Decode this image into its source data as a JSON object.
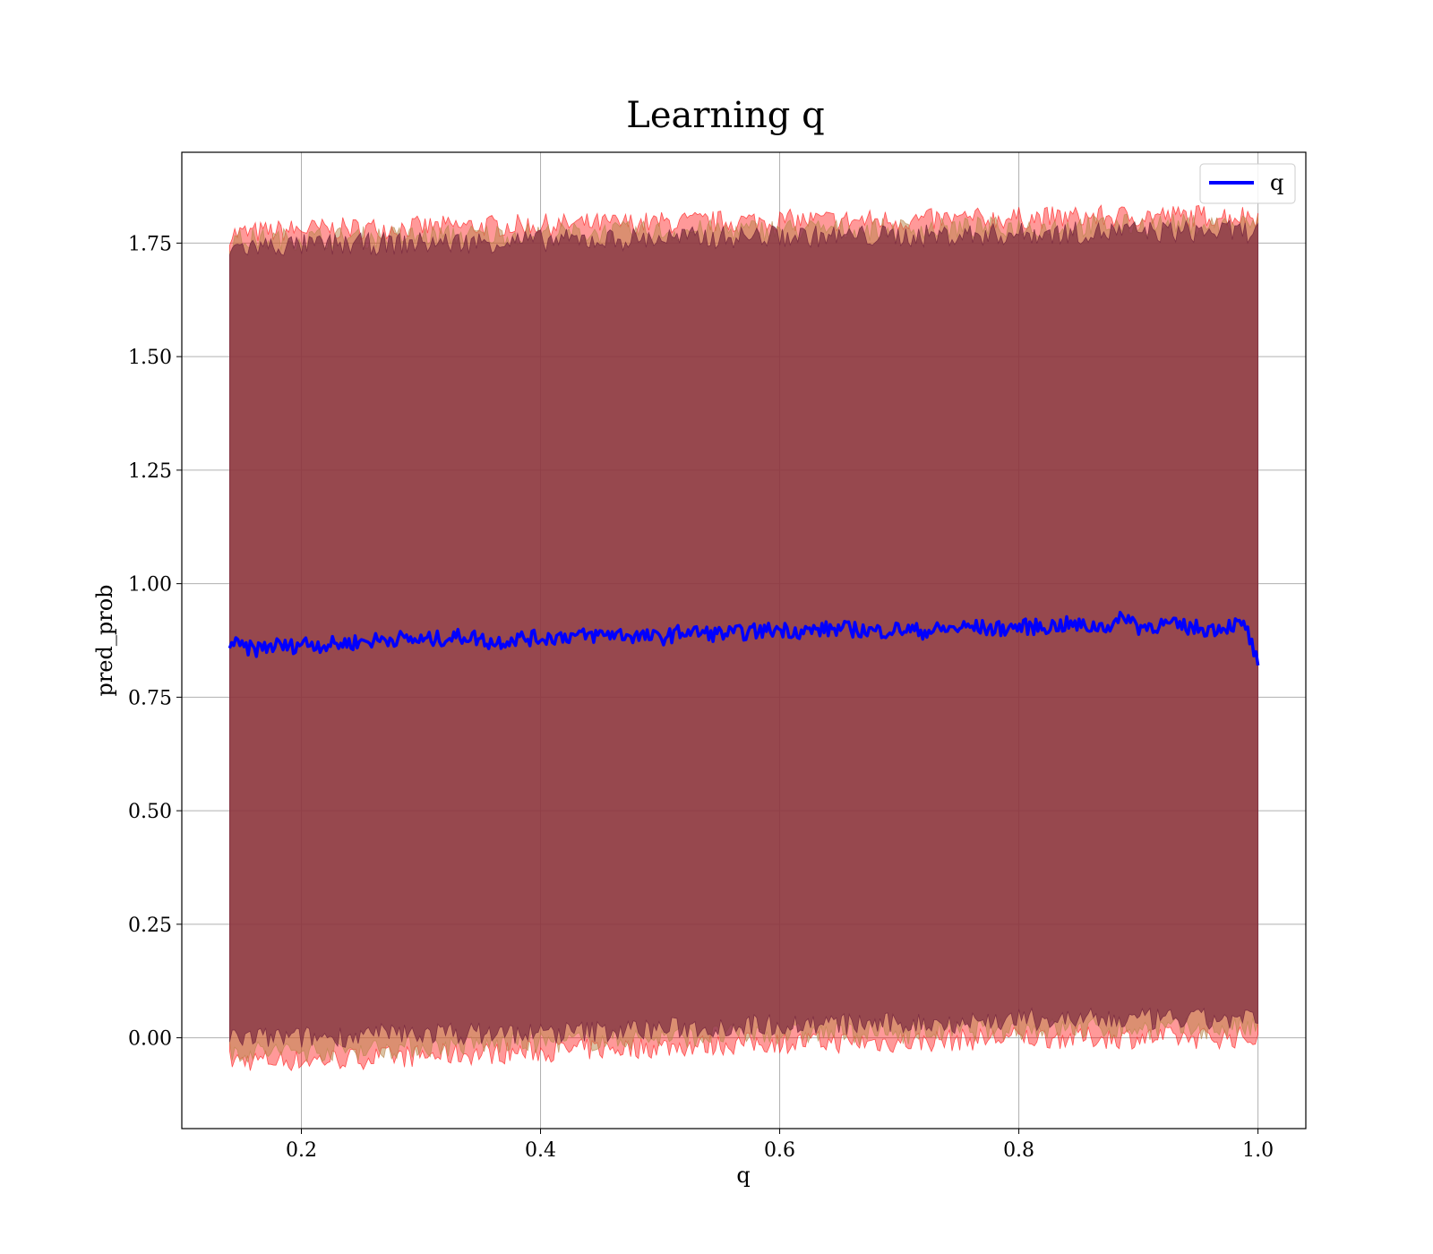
{
  "chart_data": {
    "type": "line",
    "title": "Learning q",
    "xlabel": "q",
    "ylabel": "pred_prob",
    "xlim": [
      0.1,
      1.04
    ],
    "ylim": [
      -0.2,
      1.95
    ],
    "xticks": [
      "0.2",
      "0.4",
      "0.6",
      "0.8",
      "1.0"
    ],
    "xtick_values": [
      0.2,
      0.4,
      0.6,
      0.8,
      1.0
    ],
    "yticks": [
      "0.00",
      "0.25",
      "0.50",
      "0.75",
      "1.00",
      "1.25",
      "1.50",
      "1.75"
    ],
    "ytick_values": [
      0.0,
      0.25,
      0.5,
      0.75,
      1.0,
      1.25,
      1.5,
      1.75
    ],
    "grid": true,
    "legend": {
      "position": "top-right",
      "entries": [
        "q"
      ]
    },
    "series": [
      {
        "name": "q",
        "color": "#0000ff",
        "x": [
          0.14,
          0.15,
          0.16,
          0.17,
          0.18,
          0.19,
          0.2,
          0.22,
          0.24,
          0.26,
          0.28,
          0.3,
          0.32,
          0.34,
          0.36,
          0.38,
          0.4,
          0.42,
          0.44,
          0.46,
          0.48,
          0.5,
          0.52,
          0.54,
          0.56,
          0.58,
          0.6,
          0.62,
          0.64,
          0.66,
          0.68,
          0.7,
          0.72,
          0.74,
          0.76,
          0.78,
          0.8,
          0.82,
          0.84,
          0.86,
          0.88,
          0.89,
          0.9,
          0.92,
          0.94,
          0.96,
          0.98,
          0.99,
          1.0
        ],
        "y": [
          0.87,
          0.86,
          0.855,
          0.86,
          0.865,
          0.86,
          0.87,
          0.865,
          0.87,
          0.875,
          0.88,
          0.875,
          0.88,
          0.885,
          0.87,
          0.88,
          0.88,
          0.885,
          0.885,
          0.89,
          0.885,
          0.88,
          0.895,
          0.89,
          0.89,
          0.895,
          0.9,
          0.895,
          0.9,
          0.9,
          0.895,
          0.9,
          0.895,
          0.9,
          0.905,
          0.9,
          0.905,
          0.905,
          0.91,
          0.905,
          0.91,
          0.93,
          0.905,
          0.91,
          0.905,
          0.9,
          0.91,
          0.905,
          0.82
        ]
      }
    ],
    "bands": [
      {
        "name": "outer",
        "color": "#ff0000",
        "opacity": 0.4,
        "x": [
          0.14,
          0.2,
          0.3,
          0.4,
          0.5,
          0.6,
          0.7,
          0.8,
          0.9,
          1.0
        ],
        "lower": [
          -0.05,
          -0.05,
          -0.04,
          -0.03,
          -0.02,
          -0.01,
          -0.01,
          0.0,
          0.0,
          0.0
        ],
        "upper": [
          1.77,
          1.78,
          1.785,
          1.79,
          1.795,
          1.8,
          1.8,
          1.805,
          1.81,
          1.81
        ]
      },
      {
        "name": "middle",
        "color": "#b8864a",
        "opacity": 0.5,
        "x": [
          0.14,
          0.2,
          0.3,
          0.4,
          0.5,
          0.6,
          0.7,
          0.8,
          0.9,
          1.0
        ],
        "lower": [
          -0.03,
          -0.03,
          -0.02,
          -0.01,
          0.0,
          0.01,
          0.01,
          0.02,
          0.02,
          0.02
        ],
        "upper": [
          1.755,
          1.76,
          1.765,
          1.77,
          1.775,
          1.78,
          1.78,
          1.785,
          1.79,
          1.79
        ]
      },
      {
        "name": "inner",
        "color": "#7a2a40",
        "opacity": 0.7,
        "x": [
          0.14,
          0.2,
          0.3,
          0.4,
          0.5,
          0.6,
          0.7,
          0.8,
          0.9,
          1.0
        ],
        "lower": [
          0.0,
          0.0,
          0.01,
          0.01,
          0.02,
          0.03,
          0.03,
          0.04,
          0.04,
          0.04
        ],
        "upper": [
          1.74,
          1.745,
          1.75,
          1.755,
          1.76,
          1.765,
          1.765,
          1.77,
          1.775,
          1.775
        ]
      }
    ]
  }
}
